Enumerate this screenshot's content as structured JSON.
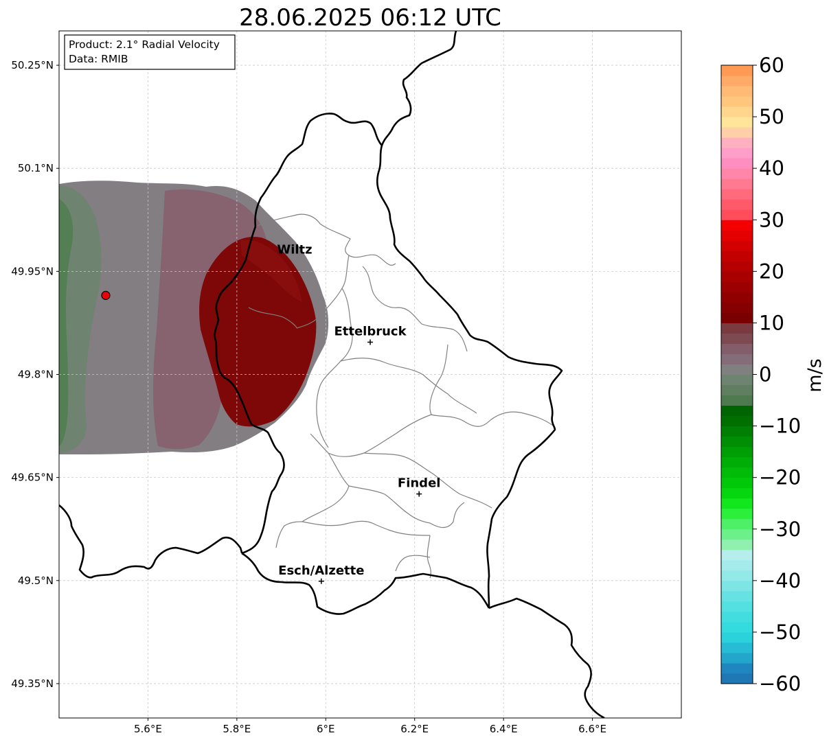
{
  "title": "28.06.2025 06:12 UTC",
  "info_box": {
    "product": "Product: 2.1° Radial Velocity",
    "data": "Data: RMIB"
  },
  "axes": {
    "lon_range": [
      5.4,
      6.8
    ],
    "lat_range": [
      49.3,
      50.3
    ],
    "x_ticks": [
      {
        "value": 5.6,
        "label": "5.6°E"
      },
      {
        "value": 5.8,
        "label": "5.8°E"
      },
      {
        "value": 6.0,
        "label": "6°E"
      },
      {
        "value": 6.2,
        "label": "6.2°E"
      },
      {
        "value": 6.4,
        "label": "6.4°E"
      },
      {
        "value": 6.6,
        "label": "6.6°E"
      }
    ],
    "y_ticks": [
      {
        "value": 50.25,
        "label": "50.25°N"
      },
      {
        "value": 50.1,
        "label": "50.1°N"
      },
      {
        "value": 49.95,
        "label": "49.95°N"
      },
      {
        "value": 49.8,
        "label": "49.8°N"
      },
      {
        "value": 49.65,
        "label": "49.65°N"
      },
      {
        "value": 49.5,
        "label": "49.5°N"
      },
      {
        "value": 49.35,
        "label": "49.35°N"
      }
    ],
    "grid": true
  },
  "radar_site": {
    "lon": 5.505,
    "lat": 49.915,
    "color": "#e8000b"
  },
  "cities": [
    {
      "name": "Wiltz",
      "lon": 5.93,
      "lat": 49.966,
      "marker": false
    },
    {
      "name": "Ettelbruck",
      "lon": 6.1,
      "lat": 49.847,
      "marker": true
    },
    {
      "name": "Findel",
      "lon": 6.21,
      "lat": 49.626,
      "marker": true
    },
    {
      "name": "Esch/Alzette",
      "lon": 5.99,
      "lat": 49.499,
      "marker": true
    }
  ],
  "colorbar": {
    "label": "m/s",
    "min": -60,
    "max": 60,
    "ticks": [
      {
        "value": 60,
        "label": "60"
      },
      {
        "value": 50,
        "label": "50"
      },
      {
        "value": 40,
        "label": "40"
      },
      {
        "value": 30,
        "label": "30"
      },
      {
        "value": 20,
        "label": "20"
      },
      {
        "value": 10,
        "label": "10"
      },
      {
        "value": 0,
        "label": "0"
      },
      {
        "value": -10,
        "label": "−10"
      },
      {
        "value": -20,
        "label": "−20"
      },
      {
        "value": -30,
        "label": "−30"
      },
      {
        "value": -40,
        "label": "−40"
      },
      {
        "value": -50,
        "label": "−50"
      },
      {
        "value": -60,
        "label": "−60"
      }
    ],
    "bands": [
      {
        "from": -60,
        "to": -58,
        "color": "#1f77b4"
      },
      {
        "from": -58,
        "to": -56,
        "color": "#1f86c0"
      },
      {
        "from": -56,
        "to": -54,
        "color": "#22a6cc"
      },
      {
        "from": -54,
        "to": -52,
        "color": "#27bcd6"
      },
      {
        "from": -52,
        "to": -50,
        "color": "#2bd2dc"
      },
      {
        "from": -50,
        "to": -48,
        "color": "#33dbdf"
      },
      {
        "from": -48,
        "to": -46,
        "color": "#42dedf"
      },
      {
        "from": -46,
        "to": -44,
        "color": "#52e0e0"
      },
      {
        "from": -44,
        "to": -42,
        "color": "#66e2e2"
      },
      {
        "from": -42,
        "to": -40,
        "color": "#7ee5e5"
      },
      {
        "from": -40,
        "to": -38,
        "color": "#93e8e8"
      },
      {
        "from": -38,
        "to": -36,
        "color": "#a6ebeb"
      },
      {
        "from": -36,
        "to": -34,
        "color": "#b6eeee"
      },
      {
        "from": -34,
        "to": -32,
        "color": "#8ff0b0"
      },
      {
        "from": -32,
        "to": -30,
        "color": "#6cf08a"
      },
      {
        "from": -30,
        "to": -28,
        "color": "#4ef068"
      },
      {
        "from": -28,
        "to": -26,
        "color": "#2cef3c"
      },
      {
        "from": -26,
        "to": -24,
        "color": "#12e61c"
      },
      {
        "from": -24,
        "to": -22,
        "color": "#06d60e"
      },
      {
        "from": -22,
        "to": -20,
        "color": "#02c80a"
      },
      {
        "from": -20,
        "to": -18,
        "color": "#00bb08"
      },
      {
        "from": -18,
        "to": -16,
        "color": "#00ad06"
      },
      {
        "from": -16,
        "to": -14,
        "color": "#009e05"
      },
      {
        "from": -14,
        "to": -12,
        "color": "#008f04"
      },
      {
        "from": -12,
        "to": -10,
        "color": "#007f03"
      },
      {
        "from": -10,
        "to": -8,
        "color": "#006f02"
      },
      {
        "from": -8,
        "to": -6,
        "color": "#006402"
      },
      {
        "from": -6,
        "to": -4,
        "color": "#4f7a4f"
      },
      {
        "from": -4,
        "to": -2,
        "color": "#5f7f60"
      },
      {
        "from": -2,
        "to": 0,
        "color": "#6e8470"
      },
      {
        "from": 0,
        "to": 2,
        "color": "#808080"
      },
      {
        "from": 2,
        "to": 4,
        "color": "#846c78"
      },
      {
        "from": 4,
        "to": 6,
        "color": "#835e6a"
      },
      {
        "from": 6,
        "to": 8,
        "color": "#7e4a52"
      },
      {
        "from": 8,
        "to": 10,
        "color": "#7a3a40"
      },
      {
        "from": 10,
        "to": 12,
        "color": "#7a0000"
      },
      {
        "from": 12,
        "to": 14,
        "color": "#850000"
      },
      {
        "from": 14,
        "to": 16,
        "color": "#900000"
      },
      {
        "from": 16,
        "to": 18,
        "color": "#9c0000"
      },
      {
        "from": 18,
        "to": 20,
        "color": "#a80000"
      },
      {
        "from": 20,
        "to": 22,
        "color": "#b40000"
      },
      {
        "from": 22,
        "to": 24,
        "color": "#c20000"
      },
      {
        "from": 24,
        "to": 26,
        "color": "#d20000"
      },
      {
        "from": 26,
        "to": 28,
        "color": "#e40000"
      },
      {
        "from": 28,
        "to": 30,
        "color": "#f40000"
      },
      {
        "from": 30,
        "to": 32,
        "color": "#ff4d5c"
      },
      {
        "from": 32,
        "to": 34,
        "color": "#ff5a6a"
      },
      {
        "from": 34,
        "to": 36,
        "color": "#ff6a7c"
      },
      {
        "from": 36,
        "to": 38,
        "color": "#ff7a90"
      },
      {
        "from": 38,
        "to": 40,
        "color": "#ff86a8"
      },
      {
        "from": 40,
        "to": 42,
        "color": "#ff8ec0"
      },
      {
        "from": 42,
        "to": 44,
        "color": "#ff9ec8"
      },
      {
        "from": 44,
        "to": 46,
        "color": "#ffb0c0"
      },
      {
        "from": 46,
        "to": 48,
        "color": "#ffd0a8"
      },
      {
        "from": 48,
        "to": 50,
        "color": "#ffe59a"
      },
      {
        "from": 50,
        "to": 52,
        "color": "#ffd68c"
      },
      {
        "from": 52,
        "to": 54,
        "color": "#ffc67e"
      },
      {
        "from": 54,
        "to": 56,
        "color": "#ffba76"
      },
      {
        "from": 56,
        "to": 58,
        "color": "#ffaa66"
      },
      {
        "from": 58,
        "to": 60,
        "color": "#ff9a55"
      }
    ]
  },
  "colors": {
    "border": "#000000",
    "canton_lines": "#808080",
    "grid": "#c8c8c8"
  }
}
